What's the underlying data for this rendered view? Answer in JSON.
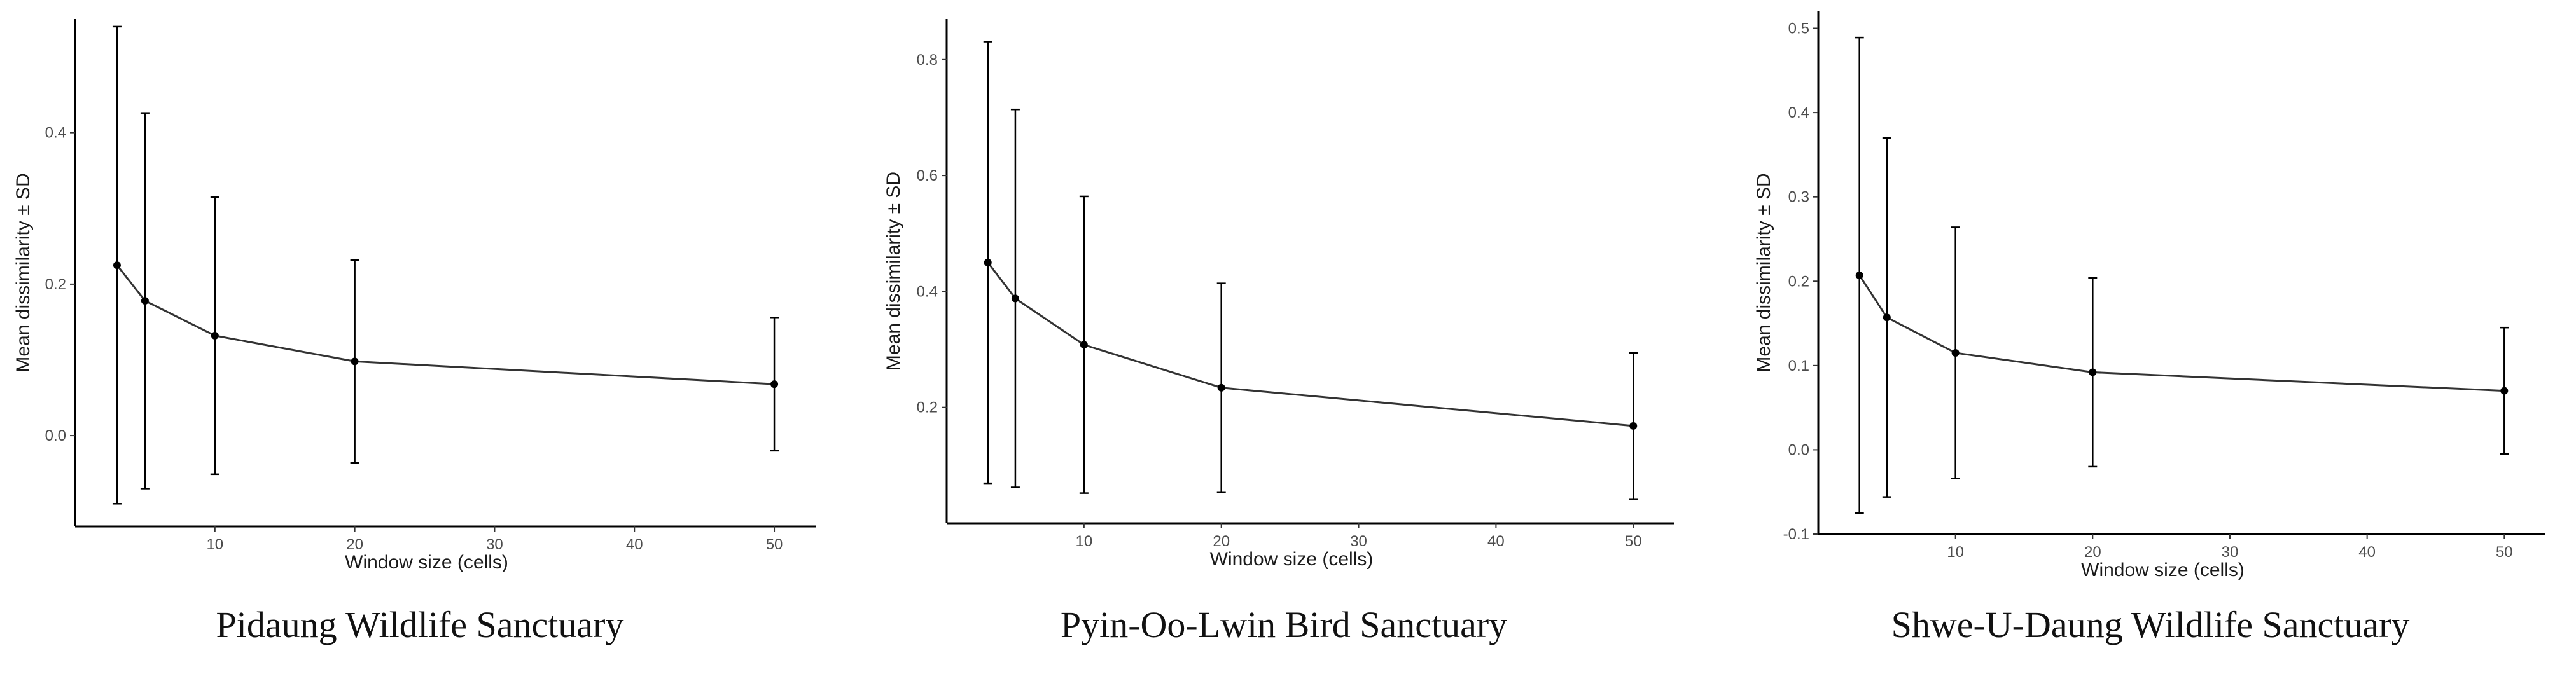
{
  "chart_data": [
    {
      "type": "line",
      "caption": "Pidaung Wildlife Sanctuary",
      "xlabel": "Window size (cells)",
      "ylabel": "Mean dissimilarity ± SD",
      "xlim": [
        0,
        53
      ],
      "ylim": [
        -0.12,
        0.55
      ],
      "xticks": [
        10,
        20,
        30,
        40,
        50
      ],
      "yticks": [
        0.0,
        0.2,
        0.4
      ],
      "ytick_labels": [
        "0.0",
        "0.2",
        "0.4"
      ],
      "grid": false,
      "series": [
        {
          "x": [
            3,
            5,
            10,
            20,
            50
          ],
          "mean": [
            0.225,
            0.178,
            0.132,
            0.098,
            0.068
          ],
          "sd": [
            0.315,
            0.248,
            0.183,
            0.134,
            0.088
          ]
        }
      ]
    },
    {
      "type": "line",
      "caption": "Pyin-Oo-Lwin Bird Sanctuary",
      "xlabel": "Window size (cells)",
      "ylabel": "Mean dissimilarity ± SD",
      "xlim": [
        0,
        53
      ],
      "ylim": [
        0.0,
        0.87
      ],
      "xticks": [
        10,
        20,
        30,
        40,
        50
      ],
      "yticks": [
        0.2,
        0.4,
        0.6,
        0.8
      ],
      "ytick_labels": [
        "0.2",
        "0.4",
        "0.6",
        "0.8"
      ],
      "grid": false,
      "series": [
        {
          "x": [
            3,
            5,
            10,
            20,
            50
          ],
          "mean": [
            0.45,
            0.388,
            0.308,
            0.234,
            0.168
          ],
          "sd": [
            0.381,
            0.326,
            0.256,
            0.18,
            0.126
          ]
        }
      ]
    },
    {
      "type": "line",
      "caption": "Shwe-U-Daung Wildlife Sanctuary",
      "xlabel": "Window size (cells)",
      "ylabel": "Mean dissimilarity ± SD",
      "xlim": [
        0,
        53
      ],
      "ylim": [
        -0.1,
        0.52
      ],
      "xticks": [
        10,
        20,
        30,
        40,
        50
      ],
      "yticks": [
        -0.1,
        0.0,
        0.1,
        0.2,
        0.3,
        0.4,
        0.5
      ],
      "ytick_labels": [
        "-0.1",
        "0.0",
        "0.1",
        "0.2",
        "0.3",
        "0.4",
        "0.5"
      ],
      "grid": false,
      "series": [
        {
          "x": [
            3,
            5,
            10,
            20,
            50
          ],
          "mean": [
            0.207,
            0.157,
            0.115,
            0.092,
            0.07
          ],
          "sd": [
            0.282,
            0.213,
            0.149,
            0.112,
            0.075
          ]
        }
      ]
    }
  ]
}
